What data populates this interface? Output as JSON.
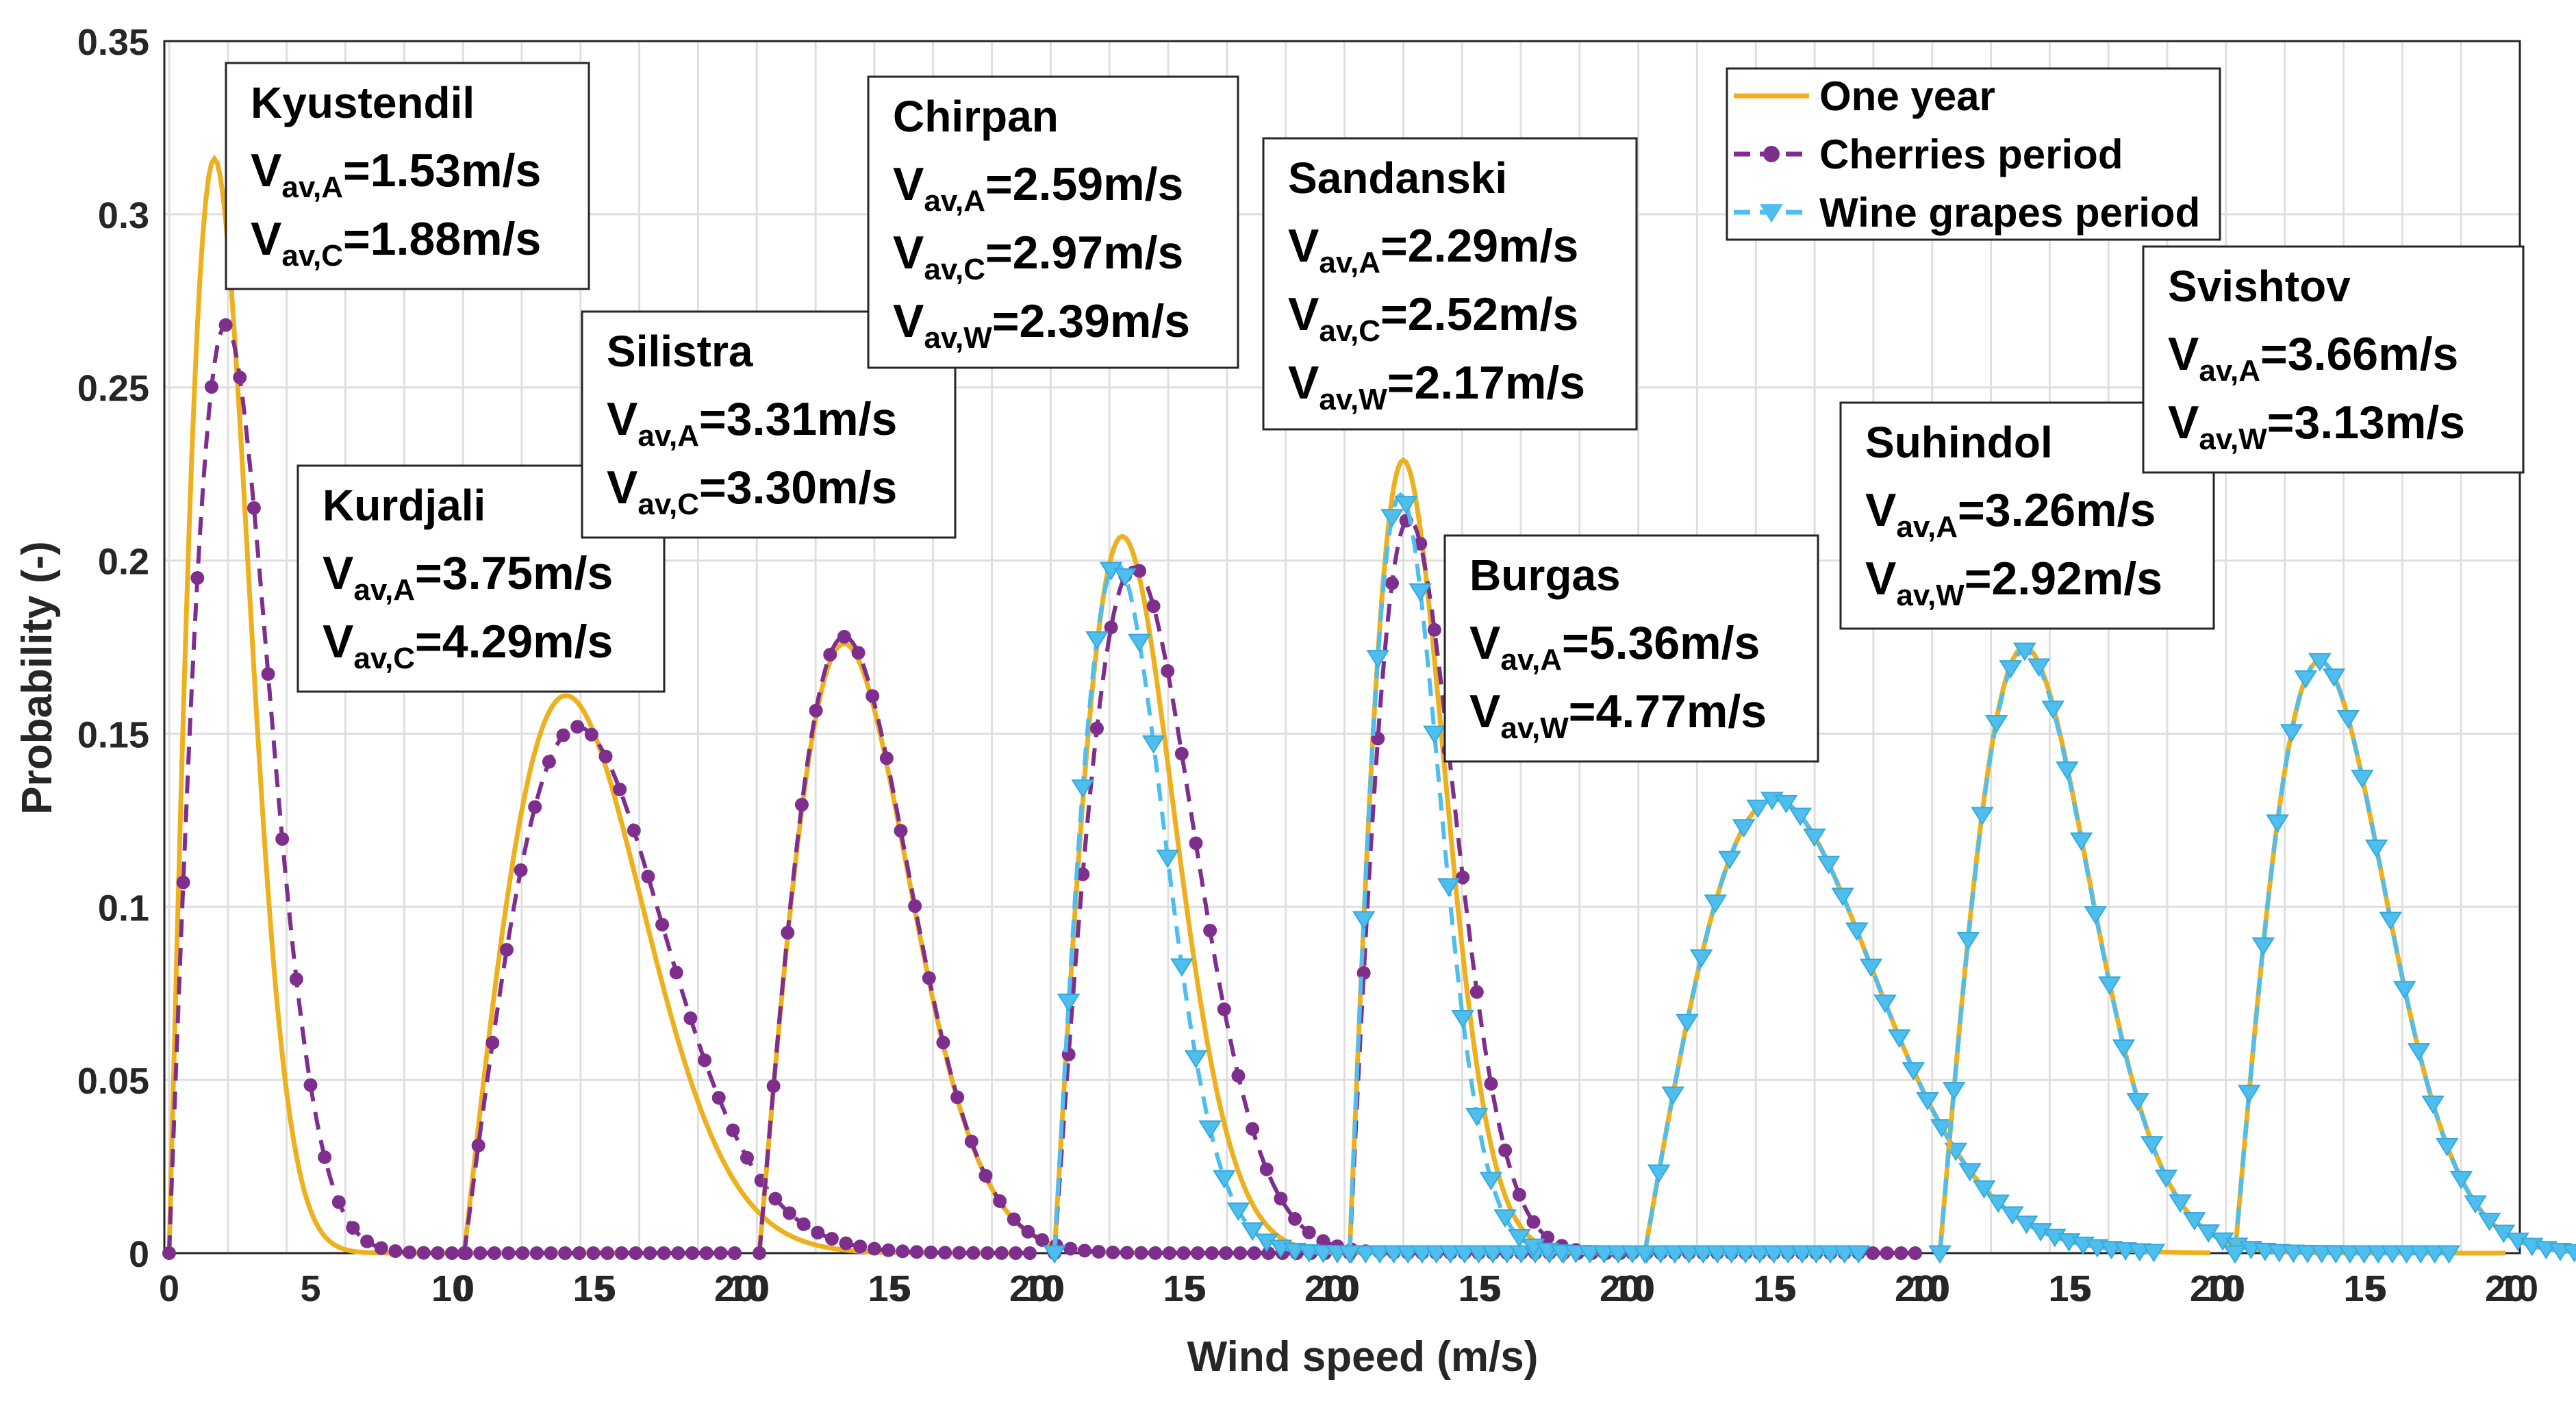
{
  "chart_data": {
    "type": "line",
    "xlabel": "Wind speed (m/s)",
    "ylabel": "Probability (-)",
    "ylim": [
      0,
      0.35
    ],
    "yticks": [
      "0",
      "0.05",
      "0.1",
      "0.15",
      "0.2",
      "0.25",
      "0.3",
      "0.35"
    ],
    "panel_xticks": [
      "0",
      "5",
      "10",
      "15",
      "20"
    ],
    "grid": true,
    "legend_position": "top-right",
    "legend": [
      {
        "name": "One year",
        "color": "#EDB120",
        "style": "solid"
      },
      {
        "name": "Cherries period",
        "color": "#7E2F8E",
        "style": "dashed-circle"
      },
      {
        "name": "Wine grapes period",
        "color": "#4DBEEE",
        "style": "dashed-triangle"
      }
    ],
    "colors": {
      "one_year": "#EDB120",
      "cherries": "#7E2F8E",
      "grapes": "#4DBEEE"
    },
    "panels": [
      {
        "site": "Kyustendil",
        "series": [
          {
            "name": "One year",
            "peak_x": 1.6,
            "peak_y": 0.316
          },
          {
            "name": "Cherries period",
            "peak_x": 2.0,
            "peak_y": 0.268
          }
        ],
        "labels": [
          {
            "pre": "V",
            "sub": "av,A",
            "post": "=1.53m/s"
          },
          {
            "pre": "V",
            "sub": "av,C",
            "post": "=1.88m/s"
          }
        ]
      },
      {
        "site": "Kurdjali",
        "series": [
          {
            "name": "One year",
            "peak_x": 3.6,
            "peak_y": 0.161
          },
          {
            "name": "Cherries period",
            "peak_x": 4.0,
            "peak_y": 0.152
          }
        ],
        "labels": [
          {
            "pre": "V",
            "sub": "av,A",
            "post": "=3.75m/s"
          },
          {
            "pre": "V",
            "sub": "av,C",
            "post": "=4.29m/s"
          }
        ]
      },
      {
        "site": "Silistra",
        "series": [
          {
            "name": "One year",
            "peak_x": 3.0,
            "peak_y": 0.176
          },
          {
            "name": "Cherries period",
            "peak_x": 3.0,
            "peak_y": 0.178
          }
        ],
        "labels": [
          {
            "pre": "V",
            "sub": "av,A",
            "post": "=3.31m/s"
          },
          {
            "pre": "V",
            "sub": "av,C",
            "post": "=3.30m/s"
          }
        ]
      },
      {
        "site": "Chirpan",
        "series": [
          {
            "name": "One year",
            "peak_x": 2.4,
            "peak_y": 0.207
          },
          {
            "name": "Cherries period",
            "peak_x": 2.8,
            "peak_y": 0.198
          },
          {
            "name": "Wine grapes period",
            "peak_x": 2.2,
            "peak_y": 0.199
          }
        ],
        "labels": [
          {
            "pre": "V",
            "sub": "av,A",
            "post": "=2.59m/s"
          },
          {
            "pre": "V",
            "sub": "av,C",
            "post": "=2.97m/s"
          },
          {
            "pre": "V",
            "sub": "av,W",
            "post": "=2.39m/s"
          }
        ]
      },
      {
        "site": "Sandanski",
        "series": [
          {
            "name": "One year",
            "peak_x": 1.9,
            "peak_y": 0.229
          },
          {
            "name": "Cherries period",
            "peak_x": 2.1,
            "peak_y": 0.212
          },
          {
            "name": "Wine grapes period",
            "peak_x": 1.8,
            "peak_y": 0.219
          }
        ],
        "labels": [
          {
            "pre": "V",
            "sub": "av,A",
            "post": "=2.29m/s"
          },
          {
            "pre": "V",
            "sub": "av,C",
            "post": "=2.52m/s"
          },
          {
            "pre": "V",
            "sub": "av,W",
            "post": "=2.17m/s"
          }
        ]
      },
      {
        "site": "Burgas",
        "series": [
          {
            "name": "One year",
            "peak_x": 4.6,
            "peak_y": 0.131
          },
          {
            "name": "Wine grapes period",
            "peak_x": 4.6,
            "peak_y": 0.131
          }
        ],
        "labels": [
          {
            "pre": "V",
            "sub": "av,A",
            "post": "=5.36m/s"
          },
          {
            "pre": "V",
            "sub": "av,W",
            "post": "=4.77m/s"
          }
        ]
      },
      {
        "site": "Suhindol",
        "series": [
          {
            "name": "One year",
            "peak_x": 3.0,
            "peak_y": 0.175
          },
          {
            "name": "Wine grapes period",
            "peak_x": 3.0,
            "peak_y": 0.174
          }
        ],
        "labels": [
          {
            "pre": "V",
            "sub": "av,A",
            "post": "=3.26m/s"
          },
          {
            "pre": "V",
            "sub": "av,W",
            "post": "=2.92m/s"
          }
        ]
      },
      {
        "site": "Svishtov",
        "series": [
          {
            "name": "One year",
            "peak_x": 3.0,
            "peak_y": 0.171
          },
          {
            "name": "Wine grapes period",
            "peak_x": 3.0,
            "peak_y": 0.171
          }
        ],
        "labels": [
          {
            "pre": "V",
            "sub": "av,A",
            "post": "=3.66m/s"
          },
          {
            "pre": "V",
            "sub": "av,W",
            "post": "=3.13m/s"
          }
        ]
      }
    ]
  }
}
